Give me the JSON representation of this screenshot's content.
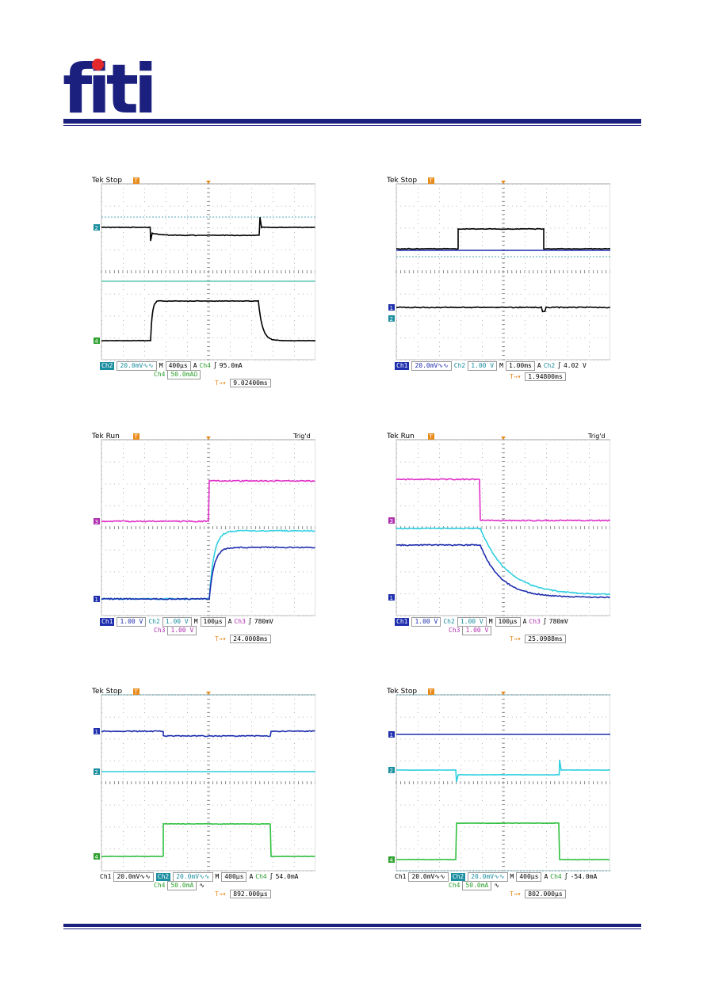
{
  "header": {
    "logo": "fiti"
  },
  "scopes": [
    {
      "id": "scope-1",
      "tek": "Tek",
      "state": "Stop",
      "trigd": "",
      "status1": [
        {
          "t": "Ch2",
          "c": "#1b8ea0",
          "inv": true
        },
        {
          "t": "20.0mV∿∿",
          "c": "#1b8ea0",
          "box": true
        },
        {
          "t": "M",
          "c": "#000"
        },
        {
          "t": "400µs",
          "c": "#000",
          "box": true
        },
        {
          "t": "A",
          "c": "#000"
        },
        {
          "t": "Ch4",
          "c": "#2ea02e"
        },
        {
          "t": "∫",
          "c": "#000"
        },
        {
          "t": "95.0mA",
          "c": "#000"
        }
      ],
      "status2": [
        {
          "t": "Ch4",
          "c": "#2ea02e"
        },
        {
          "t": "50.0mAΩ",
          "c": "#2ea02e",
          "box": true
        }
      ],
      "trigger": "9.02400ms",
      "markers": [
        "T",
        "2",
        "4"
      ]
    },
    {
      "id": "scope-2",
      "tek": "Tek",
      "state": "Stop",
      "trigd": "",
      "status1": [
        {
          "t": "Ch1",
          "c": "#1f2fae",
          "inv": true
        },
        {
          "t": "20.0mV∿∿",
          "c": "#1f2fae",
          "box": true
        },
        {
          "t": "Ch2",
          "c": "#1b8ea0"
        },
        {
          "t": "1.00 V",
          "c": "#1b8ea0",
          "box": true
        },
        {
          "t": "M",
          "c": "#000"
        },
        {
          "t": "1.00ms",
          "c": "#000",
          "box": true
        },
        {
          "t": "A",
          "c": "#000"
        },
        {
          "t": "Ch2",
          "c": "#1b8ea0"
        },
        {
          "t": "∫",
          "c": "#000"
        },
        {
          "t": "4.02 V",
          "c": "#000"
        }
      ],
      "status2": [],
      "trigger": "1.94800ms",
      "markers": [
        "T",
        "1",
        "2"
      ]
    },
    {
      "id": "scope-3",
      "tek": "Tek",
      "state": "Run",
      "trigd": "Trig'd",
      "status1": [
        {
          "t": "Ch1",
          "c": "#1f2fae",
          "inv": true
        },
        {
          "t": "1.00 V",
          "c": "#1f2fae",
          "box": true
        },
        {
          "t": "Ch2",
          "c": "#1b8ea0"
        },
        {
          "t": "1.00 V",
          "c": "#1b8ea0",
          "box": true
        },
        {
          "t": "M",
          "c": "#000"
        },
        {
          "t": "100µs",
          "c": "#000",
          "box": true
        },
        {
          "t": "A",
          "c": "#000"
        },
        {
          "t": "Ch3",
          "c": "#b030b0"
        },
        {
          "t": "∫",
          "c": "#000"
        },
        {
          "t": "780mV",
          "c": "#000"
        }
      ],
      "status2": [
        {
          "t": "Ch3",
          "c": "#b030b0"
        },
        {
          "t": "1.00 V",
          "c": "#b030b0",
          "box": true
        }
      ],
      "trigger": "24.0008ms",
      "markers": [
        "T",
        "3",
        "1"
      ]
    },
    {
      "id": "scope-4",
      "tek": "Tek",
      "state": "Run",
      "trigd": "Trig'd",
      "status1": [
        {
          "t": "Ch1",
          "c": "#1f2fae",
          "inv": true
        },
        {
          "t": "1.00 V",
          "c": "#1f2fae",
          "box": true
        },
        {
          "t": "Ch2",
          "c": "#1b8ea0"
        },
        {
          "t": "1.00 V",
          "c": "#1b8ea0",
          "box": true
        },
        {
          "t": "M",
          "c": "#000"
        },
        {
          "t": "100µs",
          "c": "#000",
          "box": true
        },
        {
          "t": "A",
          "c": "#000"
        },
        {
          "t": "Ch3",
          "c": "#b030b0"
        },
        {
          "t": "∫",
          "c": "#000"
        },
        {
          "t": "780mV",
          "c": "#000"
        }
      ],
      "status2": [
        {
          "t": "Ch3",
          "c": "#b030b0"
        },
        {
          "t": "1.00 V",
          "c": "#b030b0",
          "box": true
        }
      ],
      "trigger": "25.0988ms",
      "markers": [
        "T",
        "3",
        "1"
      ]
    },
    {
      "id": "scope-5",
      "tek": "Tek",
      "state": "Stop",
      "trigd": "",
      "status1": [
        {
          "t": "Ch1",
          "c": "#000"
        },
        {
          "t": "20.0mV∿∿",
          "c": "#000",
          "box": true
        },
        {
          "t": "Ch2",
          "c": "#1b8ea0",
          "inv": true
        },
        {
          "t": "20.0mV∿∿",
          "c": "#1b8ea0",
          "box": true
        },
        {
          "t": "M",
          "c": "#000"
        },
        {
          "t": "400µs",
          "c": "#000",
          "box": true
        },
        {
          "t": "A",
          "c": "#000"
        },
        {
          "t": "Ch4",
          "c": "#2ea02e"
        },
        {
          "t": "∫",
          "c": "#000"
        },
        {
          "t": "54.0mA",
          "c": "#000"
        }
      ],
      "status2": [
        {
          "t": "Ch4",
          "c": "#2ea02e"
        },
        {
          "t": "50.0mA",
          "c": "#2ea02e",
          "box": true
        },
        {
          "t": "∿",
          "c": "#000"
        }
      ],
      "trigger": "892.000µs",
      "markers": [
        "T",
        "1",
        "2",
        "4"
      ]
    },
    {
      "id": "scope-6",
      "tek": "Tek",
      "state": "Stop",
      "trigd": "",
      "status1": [
        {
          "t": "Ch1",
          "c": "#000"
        },
        {
          "t": "20.0mV∿∿",
          "c": "#000",
          "box": true
        },
        {
          "t": "Ch2",
          "c": "#1b8ea0",
          "inv": true
        },
        {
          "t": "20.0mV∿∿",
          "c": "#1b8ea0",
          "box": true
        },
        {
          "t": "M",
          "c": "#000"
        },
        {
          "t": "400µs",
          "c": "#000",
          "box": true
        },
        {
          "t": "A",
          "c": "#000"
        },
        {
          "t": "Ch4",
          "c": "#2ea02e"
        },
        {
          "t": "∫",
          "c": "#000"
        },
        {
          "t": "-54.0mA",
          "c": "#000"
        }
      ],
      "status2": [
        {
          "t": "Ch4",
          "c": "#2ea02e"
        },
        {
          "t": "50.0mA",
          "c": "#2ea02e",
          "box": true
        },
        {
          "t": "∿",
          "c": "#000"
        }
      ],
      "trigger": "802.000µs",
      "markers": [
        "T",
        "1",
        "2",
        "4"
      ]
    }
  ]
}
